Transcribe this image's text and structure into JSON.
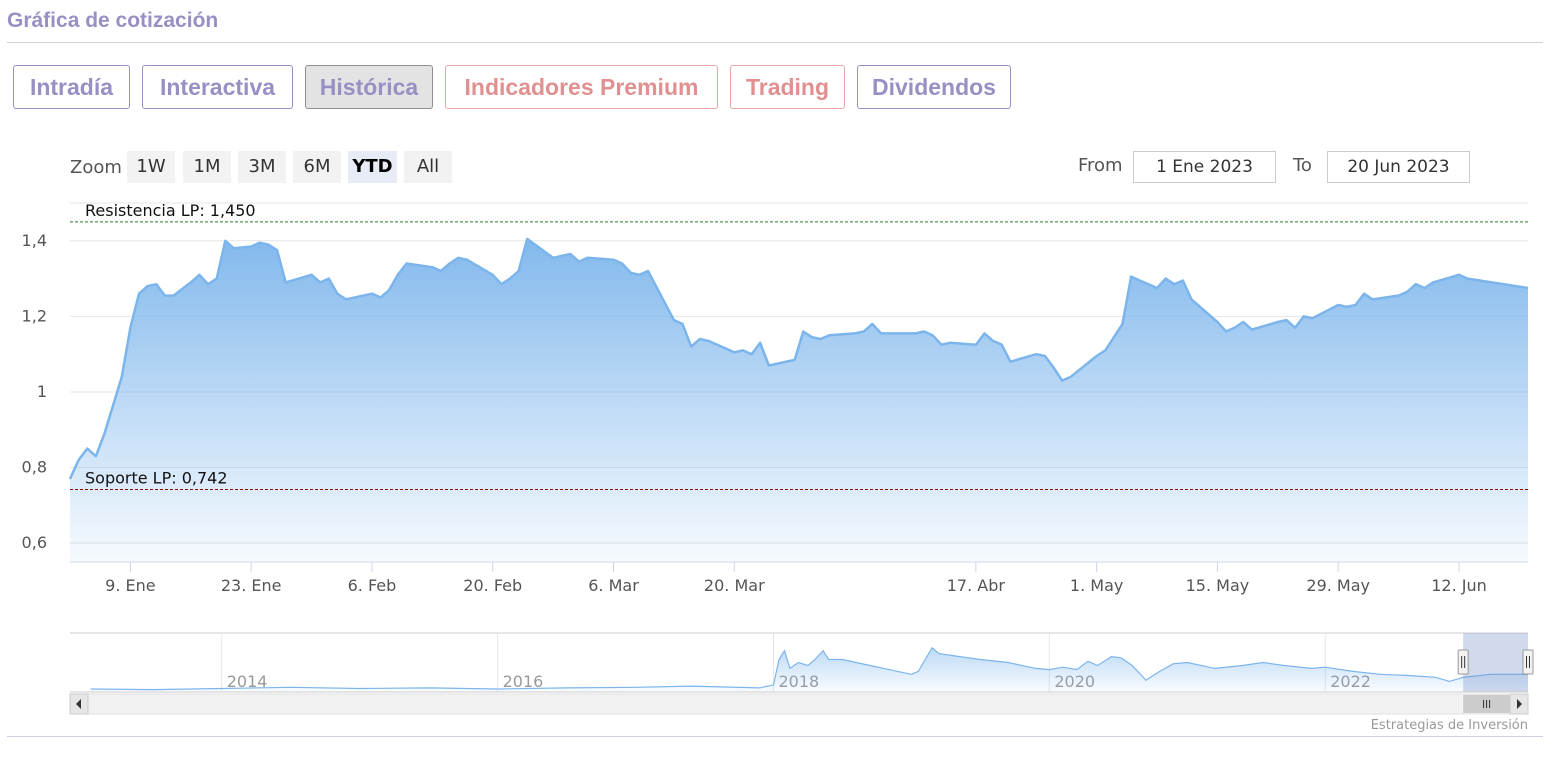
{
  "header": {
    "title": "Gráfica de cotización"
  },
  "tabs": [
    {
      "label": "Intradía",
      "style": "normal"
    },
    {
      "label": "Interactiva",
      "style": "normal"
    },
    {
      "label": "Histórica",
      "style": "active"
    },
    {
      "label": "Indicadores Premium",
      "style": "premium"
    },
    {
      "label": "Trading",
      "style": "premium"
    },
    {
      "label": "Dividendos",
      "style": "normal"
    }
  ],
  "zoom": {
    "label": "Zoom",
    "buttons": [
      {
        "label": "1W"
      },
      {
        "label": "1M"
      },
      {
        "label": "3M"
      },
      {
        "label": "6M"
      },
      {
        "label": "YTD",
        "active": true
      },
      {
        "label": "All"
      }
    ]
  },
  "range": {
    "from_label": "From",
    "from_value": "1 Ene 2023",
    "to_label": "To",
    "to_value": "20 Jun 2023"
  },
  "colors": {
    "accent": "#9a8fc4",
    "premium": "#e09090",
    "series_line": "#7cb5ec",
    "resistance_line": "#2a7a2a",
    "support_line": "#8b0000"
  },
  "credit": "Estrategias de Inversión",
  "chart_data": {
    "type": "area",
    "ylim": [
      0.55,
      1.5
    ],
    "yticks": [
      0.6,
      0.8,
      1,
      1.2,
      1.4
    ],
    "ytick_labels": [
      "0,6",
      "0,8",
      "1",
      "1,2",
      "1,4"
    ],
    "xlim": [
      "2023-01-02",
      "2023-06-20"
    ],
    "xticks": [
      {
        "date": "2023-01-09",
        "label": "9. Ene"
      },
      {
        "date": "2023-01-23",
        "label": "23. Ene"
      },
      {
        "date": "2023-02-06",
        "label": "6. Feb"
      },
      {
        "date": "2023-02-20",
        "label": "20. Feb"
      },
      {
        "date": "2023-03-06",
        "label": "6. Mar"
      },
      {
        "date": "2023-03-20",
        "label": "20. Mar"
      },
      {
        "date": "2023-04-17",
        "label": "17. Abr"
      },
      {
        "date": "2023-05-01",
        "label": "1. May"
      },
      {
        "date": "2023-05-15",
        "label": "15. May"
      },
      {
        "date": "2023-05-29",
        "label": "29. May"
      },
      {
        "date": "2023-06-12",
        "label": "12. Jun"
      }
    ],
    "series": [
      {
        "points": [
          [
            "2023-01-02",
            0.77
          ],
          [
            "2023-01-03",
            0.82
          ],
          [
            "2023-01-04",
            0.85
          ],
          [
            "2023-01-05",
            0.83
          ],
          [
            "2023-01-06",
            0.89
          ],
          [
            "2023-01-08",
            1.04
          ],
          [
            "2023-01-09",
            1.17
          ],
          [
            "2023-01-10",
            1.26
          ],
          [
            "2023-01-11",
            1.28
          ],
          [
            "2023-01-12",
            1.285
          ],
          [
            "2023-01-13",
            1.255
          ],
          [
            "2023-01-14",
            1.255
          ],
          [
            "2023-01-16",
            1.29
          ],
          [
            "2023-01-17",
            1.31
          ],
          [
            "2023-01-18",
            1.285
          ],
          [
            "2023-01-19",
            1.3
          ],
          [
            "2023-01-20",
            1.4
          ],
          [
            "2023-01-21",
            1.38
          ],
          [
            "2023-01-23",
            1.385
          ],
          [
            "2023-01-24",
            1.395
          ],
          [
            "2023-01-25",
            1.39
          ],
          [
            "2023-01-26",
            1.375
          ],
          [
            "2023-01-27",
            1.29
          ],
          [
            "2023-01-30",
            1.31
          ],
          [
            "2023-01-31",
            1.29
          ],
          [
            "2023-02-01",
            1.3
          ],
          [
            "2023-02-02",
            1.26
          ],
          [
            "2023-02-03",
            1.245
          ],
          [
            "2023-02-06",
            1.26
          ],
          [
            "2023-02-07",
            1.25
          ],
          [
            "2023-02-08",
            1.27
          ],
          [
            "2023-02-09",
            1.31
          ],
          [
            "2023-02-10",
            1.34
          ],
          [
            "2023-02-13",
            1.33
          ],
          [
            "2023-02-14",
            1.32
          ],
          [
            "2023-02-15",
            1.34
          ],
          [
            "2023-02-16",
            1.355
          ],
          [
            "2023-02-17",
            1.35
          ],
          [
            "2023-02-20",
            1.31
          ],
          [
            "2023-02-21",
            1.285
          ],
          [
            "2023-02-22",
            1.3
          ],
          [
            "2023-02-23",
            1.32
          ],
          [
            "2023-02-24",
            1.405
          ],
          [
            "2023-02-27",
            1.355
          ],
          [
            "2023-02-28",
            1.36
          ],
          [
            "2023-03-01",
            1.365
          ],
          [
            "2023-03-02",
            1.345
          ],
          [
            "2023-03-03",
            1.355
          ],
          [
            "2023-03-06",
            1.35
          ],
          [
            "2023-03-07",
            1.34
          ],
          [
            "2023-03-08",
            1.315
          ],
          [
            "2023-03-09",
            1.31
          ],
          [
            "2023-03-10",
            1.32
          ],
          [
            "2023-03-13",
            1.19
          ],
          [
            "2023-03-14",
            1.18
          ],
          [
            "2023-03-15",
            1.12
          ],
          [
            "2023-03-16",
            1.14
          ],
          [
            "2023-03-17",
            1.135
          ],
          [
            "2023-03-20",
            1.105
          ],
          [
            "2023-03-21",
            1.11
          ],
          [
            "2023-03-22",
            1.1
          ],
          [
            "2023-03-23",
            1.13
          ],
          [
            "2023-03-24",
            1.07
          ],
          [
            "2023-03-27",
            1.085
          ],
          [
            "2023-03-28",
            1.16
          ],
          [
            "2023-03-29",
            1.145
          ],
          [
            "2023-03-30",
            1.14
          ],
          [
            "2023-03-31",
            1.15
          ],
          [
            "2023-04-03",
            1.155
          ],
          [
            "2023-04-04",
            1.16
          ],
          [
            "2023-04-05",
            1.18
          ],
          [
            "2023-04-06",
            1.155
          ],
          [
            "2023-04-10",
            1.155
          ],
          [
            "2023-04-11",
            1.16
          ],
          [
            "2023-04-12",
            1.15
          ],
          [
            "2023-04-13",
            1.125
          ],
          [
            "2023-04-14",
            1.13
          ],
          [
            "2023-04-17",
            1.125
          ],
          [
            "2023-04-18",
            1.155
          ],
          [
            "2023-04-19",
            1.135
          ],
          [
            "2023-04-20",
            1.125
          ],
          [
            "2023-04-21",
            1.08
          ],
          [
            "2023-04-24",
            1.1
          ],
          [
            "2023-04-25",
            1.095
          ],
          [
            "2023-04-26",
            1.065
          ],
          [
            "2023-04-27",
            1.03
          ],
          [
            "2023-04-28",
            1.04
          ],
          [
            "2023-05-01",
            1.095
          ],
          [
            "2023-05-02",
            1.11
          ],
          [
            "2023-05-03",
            1.145
          ],
          [
            "2023-05-04",
            1.18
          ],
          [
            "2023-05-05",
            1.305
          ],
          [
            "2023-05-08",
            1.275
          ],
          [
            "2023-05-09",
            1.3
          ],
          [
            "2023-05-10",
            1.285
          ],
          [
            "2023-05-11",
            1.295
          ],
          [
            "2023-05-12",
            1.245
          ],
          [
            "2023-05-15",
            1.185
          ],
          [
            "2023-05-16",
            1.16
          ],
          [
            "2023-05-17",
            1.17
          ],
          [
            "2023-05-18",
            1.185
          ],
          [
            "2023-05-19",
            1.165
          ],
          [
            "2023-05-22",
            1.185
          ],
          [
            "2023-05-23",
            1.19
          ],
          [
            "2023-05-24",
            1.17
          ],
          [
            "2023-05-25",
            1.2
          ],
          [
            "2023-05-26",
            1.195
          ],
          [
            "2023-05-29",
            1.23
          ],
          [
            "2023-05-30",
            1.225
          ],
          [
            "2023-05-31",
            1.23
          ],
          [
            "2023-06-01",
            1.26
          ],
          [
            "2023-06-02",
            1.245
          ],
          [
            "2023-06-05",
            1.255
          ],
          [
            "2023-06-06",
            1.265
          ],
          [
            "2023-06-07",
            1.285
          ],
          [
            "2023-06-08",
            1.275
          ],
          [
            "2023-06-09",
            1.29
          ],
          [
            "2023-06-12",
            1.31
          ],
          [
            "2023-06-13",
            1.3
          ],
          [
            "2023-06-20",
            1.275
          ]
        ]
      }
    ],
    "plot_lines": [
      {
        "label": "Resistencia LP: 1,450",
        "value": 1.45,
        "color": "#2a7a2a"
      },
      {
        "label": "Soporte LP: 0,742",
        "value": 0.742,
        "color": "#8b0000"
      }
    ],
    "navigator": {
      "xlim": [
        2012.9,
        2023.47
      ],
      "year_labels": [
        {
          "year": 2014,
          "label": "2014"
        },
        {
          "year": 2016,
          "label": "2016"
        },
        {
          "year": 2018,
          "label": "2018"
        },
        {
          "year": 2020,
          "label": "2020"
        },
        {
          "year": 2022,
          "label": "2022"
        }
      ],
      "selection": [
        2023.0,
        2023.47
      ],
      "series": [
        [
          2013.05,
          0.05
        ],
        [
          2013.5,
          0.04
        ],
        [
          2014.0,
          0.06
        ],
        [
          2014.5,
          0.08
        ],
        [
          2015.0,
          0.06
        ],
        [
          2015.5,
          0.07
        ],
        [
          2016.0,
          0.05
        ],
        [
          2016.5,
          0.07
        ],
        [
          2017.0,
          0.08
        ],
        [
          2017.4,
          0.1
        ],
        [
          2017.9,
          0.07
        ],
        [
          2018.0,
          0.12
        ],
        [
          2018.04,
          0.55
        ],
        [
          2018.08,
          0.7
        ],
        [
          2018.12,
          0.4
        ],
        [
          2018.18,
          0.5
        ],
        [
          2018.25,
          0.45
        ],
        [
          2018.3,
          0.55
        ],
        [
          2018.36,
          0.7
        ],
        [
          2018.4,
          0.55
        ],
        [
          2018.5,
          0.55
        ],
        [
          2018.6,
          0.5
        ],
        [
          2018.7,
          0.45
        ],
        [
          2018.8,
          0.4
        ],
        [
          2018.9,
          0.35
        ],
        [
          2019.0,
          0.3
        ],
        [
          2019.05,
          0.35
        ],
        [
          2019.1,
          0.55
        ],
        [
          2019.15,
          0.75
        ],
        [
          2019.2,
          0.65
        ],
        [
          2019.35,
          0.6
        ],
        [
          2019.5,
          0.55
        ],
        [
          2019.7,
          0.5
        ],
        [
          2019.9,
          0.4
        ],
        [
          2020.0,
          0.38
        ],
        [
          2020.1,
          0.42
        ],
        [
          2020.2,
          0.38
        ],
        [
          2020.28,
          0.52
        ],
        [
          2020.35,
          0.45
        ],
        [
          2020.45,
          0.6
        ],
        [
          2020.52,
          0.58
        ],
        [
          2020.6,
          0.45
        ],
        [
          2020.7,
          0.2
        ],
        [
          2020.8,
          0.35
        ],
        [
          2020.9,
          0.48
        ],
        [
          2021.0,
          0.5
        ],
        [
          2021.2,
          0.4
        ],
        [
          2021.4,
          0.45
        ],
        [
          2021.55,
          0.5
        ],
        [
          2021.7,
          0.45
        ],
        [
          2021.9,
          0.4
        ],
        [
          2022.0,
          0.42
        ],
        [
          2022.2,
          0.35
        ],
        [
          2022.4,
          0.3
        ],
        [
          2022.6,
          0.28
        ],
        [
          2022.8,
          0.25
        ],
        [
          2022.9,
          0.18
        ],
        [
          2023.0,
          0.25
        ],
        [
          2023.2,
          0.3
        ],
        [
          2023.47,
          0.3
        ]
      ]
    }
  }
}
